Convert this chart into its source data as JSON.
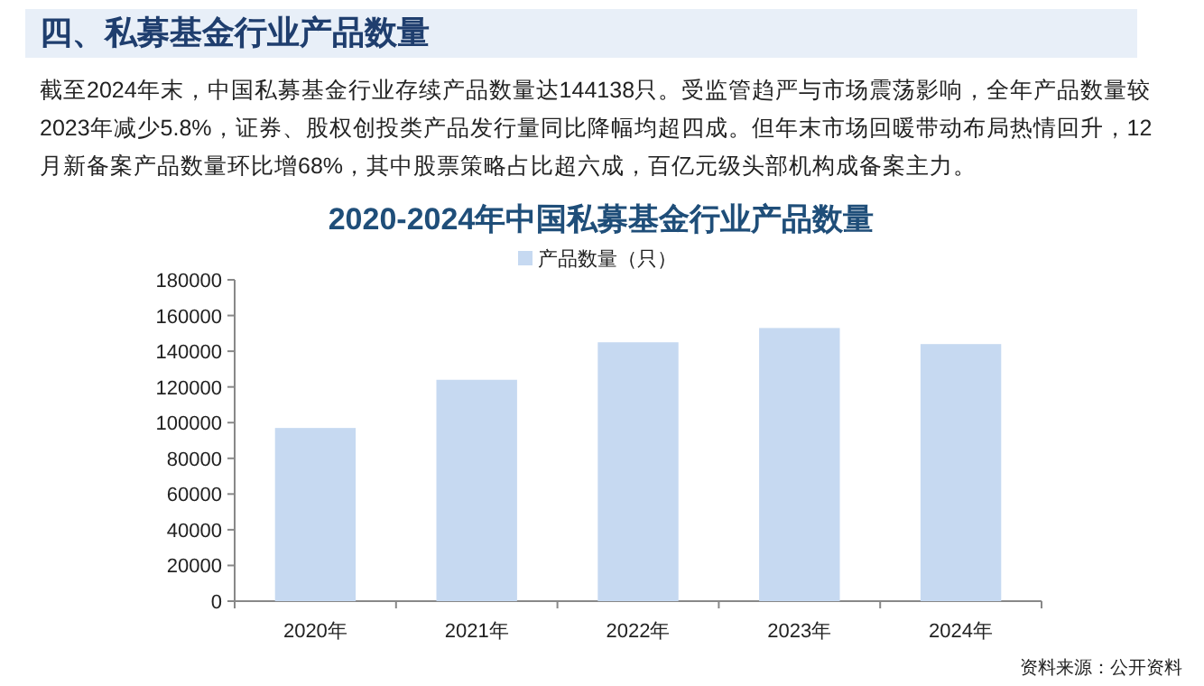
{
  "chart_data": {
    "type": "bar",
    "title": "2020-2024年中国私募基金行业产品数量",
    "categories": [
      "2020年",
      "2021年",
      "2022年",
      "2023年",
      "2024年"
    ],
    "series": [
      {
        "name": "产品数量（只）",
        "color": "#c6d9f1",
        "values": [
          97000,
          124000,
          145000,
          153000,
          144000
        ]
      }
    ],
    "ylim": [
      0,
      180000
    ],
    "yticks": [
      0,
      20000,
      40000,
      60000,
      80000,
      100000,
      120000,
      140000,
      160000,
      180000
    ],
    "legend": "top",
    "grid": false,
    "annotations": [
      "四、私募基金行业产品数量",
      "截至2024年末，中国私募基金行业存续产品数量达144138只。受监管趋严与市场震荡影响，全年产品数量较2023年减少5.8%，证券、股权创投类产品发行量同比降幅均超四成。但年末市场回暖带动布局热情回升，12月新备案产品数量环比增68%，其中股票策略占比超六成，百亿元级头部机构成备案主力。",
      "资料来源：公开资料"
    ]
  }
}
